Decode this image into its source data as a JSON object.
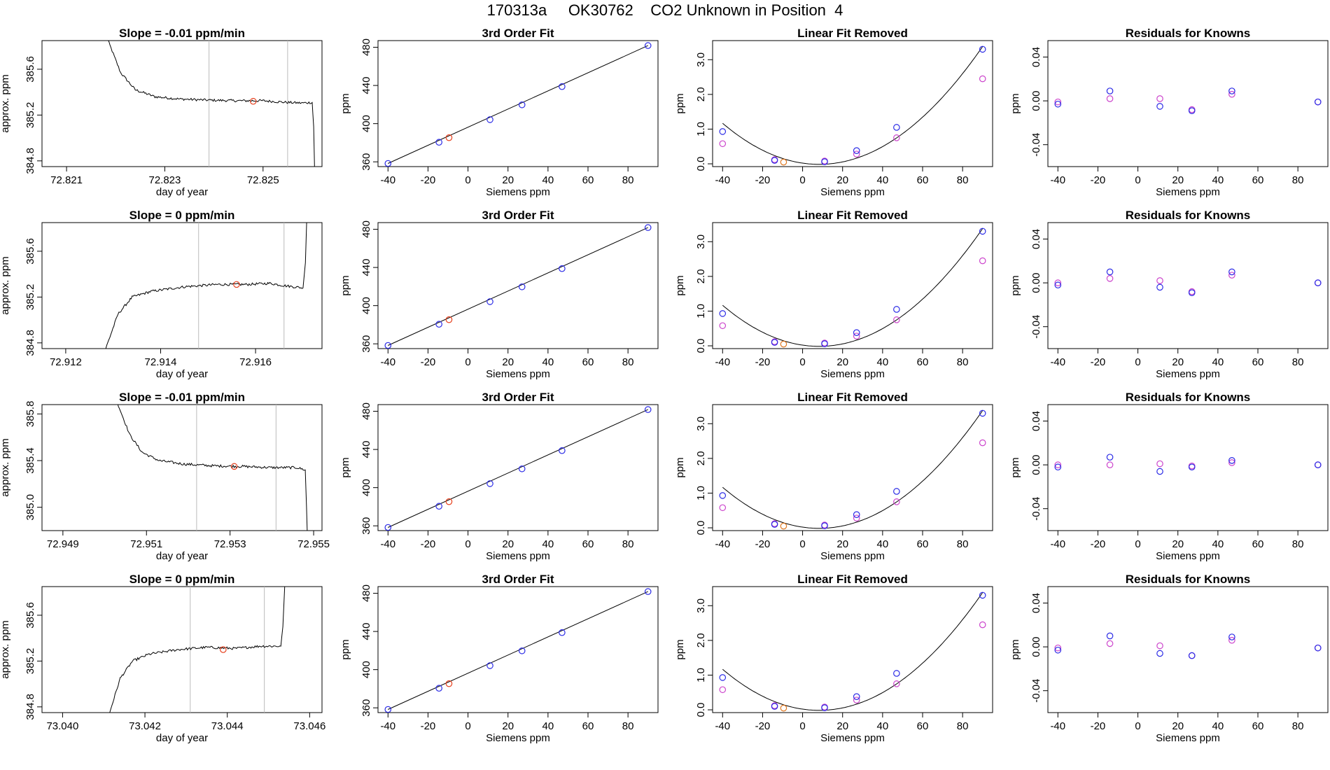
{
  "title": "170313a     OK30762    CO2 Unknown in Position  4",
  "colors": {
    "line": "#000000",
    "frame": "#000000",
    "known_point": "#2a2ae6",
    "fit_point": "#cc44cc",
    "unknown_point": "#e6401e",
    "unknown_orange": "#e07820",
    "vline": "#bbbbbb"
  },
  "fit_panel": {
    "title": "3rd Order Fit",
    "xlabel": "Siemens ppm",
    "ylabel": "ppm",
    "xlim": [
      -45,
      95
    ],
    "ylim": [
      355,
      487
    ],
    "xticks": [
      -40,
      -20,
      0,
      20,
      40,
      60,
      80
    ],
    "yticks": [
      360,
      400,
      440,
      480
    ],
    "line": [
      [
        -40,
        358.3
      ],
      [
        90,
        481.8
      ]
    ],
    "knowns": [
      [
        -40,
        358.3
      ],
      [
        -14.5,
        380.5
      ],
      [
        11,
        404.2
      ],
      [
        27,
        419.7
      ],
      [
        47,
        438.8
      ],
      [
        90,
        481.8
      ]
    ],
    "unknown": [
      -9.5,
      385.3
    ]
  },
  "linfit_panel": {
    "title": "Linear Fit Removed",
    "xlabel": "Siemens ppm",
    "ylabel": "ppm",
    "xlim": [
      -45,
      95
    ],
    "ylim": [
      -0.08,
      3.55
    ],
    "xticks": [
      -40,
      -20,
      0,
      20,
      40,
      60,
      80
    ],
    "yticks": [
      0.0,
      1.0,
      2.0,
      3.0
    ],
    "ytick_labels": [
      "0.0",
      "1.0",
      "2.0",
      "3.0"
    ],
    "curve_coef": [
      0.02,
      -0.0084,
      0.000508
    ],
    "knowns": [
      [
        -40,
        0.93
      ],
      [
        -14,
        0.1
      ],
      [
        11,
        0.06
      ],
      [
        27,
        0.38
      ],
      [
        47,
        1.05
      ],
      [
        90,
        3.3
      ]
    ],
    "fitpoints": [
      [
        -40,
        0.58
      ],
      [
        -14,
        0.12
      ],
      [
        11,
        0.08
      ],
      [
        27,
        0.28
      ],
      [
        47,
        0.75
      ],
      [
        90,
        2.45
      ]
    ],
    "unknown": [
      -9.5,
      0.05
    ]
  },
  "resid_panel": {
    "title": "Residuals for Knowns",
    "xlabel": "Siemens ppm",
    "ylabel": "ppm",
    "xlim": [
      -45,
      95
    ],
    "ylim": [
      -0.06,
      0.055
    ],
    "xticks": [
      -40,
      -20,
      0,
      20,
      40,
      60,
      80
    ],
    "yticks": [
      -0.04,
      0.0,
      0.04
    ],
    "ytick_labels": [
      "-0.04",
      "0.00",
      "0.04"
    ]
  },
  "rows": [
    {
      "ts": {
        "title": "Slope =  -0.01  ppm/min",
        "xlabel": "day of year",
        "ylabel": "approx. ppm",
        "xlim": [
          72.8205,
          72.8262
        ],
        "ylim": [
          384.75,
          385.85
        ],
        "xticks": [
          72.821,
          72.823,
          72.825
        ],
        "xtick_labels": [
          "72.821",
          "72.823",
          "72.825"
        ],
        "yticks": [
          384.8,
          385.2,
          385.6
        ],
        "ytick_labels": [
          "384.8",
          "385.2",
          "385.6"
        ],
        "vlines": [
          72.8239,
          72.8255
        ],
        "series": [
          [
            72.8218,
            385.9
          ],
          [
            72.8221,
            385.57
          ],
          [
            72.8224,
            385.42
          ],
          [
            72.8228,
            385.36
          ],
          [
            72.8233,
            385.34
          ],
          [
            72.8239,
            385.33
          ],
          [
            72.8245,
            385.325
          ],
          [
            72.825,
            385.325
          ],
          [
            72.8255,
            385.31
          ],
          [
            72.8258,
            385.305
          ],
          [
            72.826,
            385.31
          ],
          [
            72.82603,
            385.1
          ],
          [
            72.82605,
            384.7
          ]
        ],
        "marker": [
          72.8248,
          385.32
        ],
        "start": 72.8218,
        "end": 72.826,
        "start_y": 385.9,
        "end_y": 384.7
      },
      "resid_knowns": [
        [
          -40,
          -0.003
        ],
        [
          -14,
          0.009
        ],
        [
          11,
          -0.005
        ],
        [
          27,
          -0.009
        ],
        [
          47,
          0.009
        ],
        [
          90,
          -0.001
        ]
      ],
      "resid_fit": [
        [
          -40,
          -0.001
        ],
        [
          -14,
          0.002
        ],
        [
          11,
          0.002
        ],
        [
          27,
          -0.008
        ],
        [
          47,
          0.006
        ],
        [
          90,
          -0.001
        ]
      ]
    },
    {
      "ts": {
        "title": "Slope =  0  ppm/min",
        "xlabel": "day of year",
        "ylabel": "approx. ppm",
        "xlim": [
          72.9115,
          72.9174
        ],
        "ylim": [
          384.75,
          385.85
        ],
        "xticks": [
          72.912,
          72.914,
          72.916
        ],
        "xtick_labels": [
          "72.912",
          "72.914",
          "72.916"
        ],
        "yticks": [
          384.8,
          385.2,
          385.6
        ],
        "ytick_labels": [
          "384.8",
          "385.2",
          "385.6"
        ],
        "vlines": [
          72.9148,
          72.9166
        ],
        "series": [
          [
            72.9128,
            384.7
          ],
          [
            72.9131,
            385.05
          ],
          [
            72.9134,
            385.2
          ],
          [
            72.9138,
            385.25
          ],
          [
            72.9145,
            385.29
          ],
          [
            72.9152,
            385.31
          ],
          [
            72.9158,
            385.31
          ],
          [
            72.9163,
            385.32
          ],
          [
            72.9166,
            385.3
          ],
          [
            72.917,
            385.28
          ],
          [
            72.91705,
            385.5
          ],
          [
            72.91708,
            385.9
          ]
        ],
        "marker": [
          72.9156,
          385.31
        ],
        "start": 72.9128,
        "end": 72.917,
        "start_y": 384.7,
        "end_y": 385.9
      },
      "resid_knowns": [
        [
          -40,
          -0.002
        ],
        [
          -14,
          0.01
        ],
        [
          11,
          -0.004
        ],
        [
          27,
          -0.009
        ],
        [
          47,
          0.01
        ],
        [
          90,
          0.0
        ]
      ],
      "resid_fit": [
        [
          -40,
          0.0
        ],
        [
          -14,
          0.004
        ],
        [
          11,
          0.002
        ],
        [
          27,
          -0.008
        ],
        [
          47,
          0.007
        ],
        [
          90,
          0.0
        ]
      ]
    },
    {
      "ts": {
        "title": "Slope =  -0.01  ppm/min",
        "xlabel": "day of year",
        "ylabel": "approx. ppm",
        "xlim": [
          72.9485,
          72.9552
        ],
        "ylim": [
          384.8,
          385.88
        ],
        "xticks": [
          72.949,
          72.951,
          72.953,
          72.955
        ],
        "xtick_labels": [
          "72.949",
          "72.951",
          "72.953",
          "72.955"
        ],
        "yticks": [
          385.0,
          385.4,
          385.8
        ],
        "ytick_labels": [
          "385.0",
          "385.4",
          "385.8"
        ],
        "vlines": [
          72.9522,
          72.9541
        ],
        "series": [
          [
            72.9503,
            385.9
          ],
          [
            72.9506,
            385.62
          ],
          [
            72.9509,
            385.47
          ],
          [
            72.9513,
            385.4
          ],
          [
            72.9519,
            385.37
          ],
          [
            72.9526,
            385.355
          ],
          [
            72.9533,
            385.35
          ],
          [
            72.954,
            385.34
          ],
          [
            72.9546,
            385.34
          ],
          [
            72.9548,
            385.32
          ],
          [
            72.95483,
            385.0
          ],
          [
            72.95485,
            384.75
          ]
        ],
        "marker": [
          72.9531,
          385.35
        ],
        "start": 72.9503,
        "end": 72.9548,
        "start_y": 385.9,
        "end_y": 384.75
      },
      "resid_knowns": [
        [
          -40,
          -0.002
        ],
        [
          -14,
          0.007
        ],
        [
          11,
          -0.006
        ],
        [
          27,
          -0.002
        ],
        [
          47,
          0.004
        ],
        [
          90,
          0.0
        ]
      ],
      "resid_fit": [
        [
          -40,
          0.0
        ],
        [
          -14,
          0.0
        ],
        [
          11,
          0.001
        ],
        [
          27,
          -0.001
        ],
        [
          47,
          0.002
        ],
        [
          90,
          0.0
        ]
      ]
    },
    {
      "ts": {
        "title": "Slope =  0  ppm/min",
        "xlabel": "day of year",
        "ylabel": "approx. ppm",
        "xlim": [
          73.0395,
          73.0463
        ],
        "ylim": [
          384.75,
          385.85
        ],
        "xticks": [
          73.04,
          73.042,
          73.044,
          73.046
        ],
        "xtick_labels": [
          "73.040",
          "73.042",
          "73.044",
          "73.046"
        ],
        "yticks": [
          384.8,
          385.2,
          385.6
        ],
        "ytick_labels": [
          "384.8",
          "385.2",
          "385.6"
        ],
        "vlines": [
          73.0431,
          73.0449
        ],
        "series": [
          [
            73.0411,
            384.7
          ],
          [
            73.0414,
            385.05
          ],
          [
            73.0417,
            385.2
          ],
          [
            73.0421,
            385.26
          ],
          [
            73.0428,
            385.3
          ],
          [
            73.0435,
            385.32
          ],
          [
            73.0442,
            385.31
          ],
          [
            73.0448,
            385.33
          ],
          [
            73.0453,
            385.33
          ],
          [
            73.04535,
            385.5
          ],
          [
            73.0454,
            385.9
          ]
        ],
        "marker": [
          73.0439,
          385.3
        ],
        "start": 73.0411,
        "end": 73.0454,
        "start_y": 384.7,
        "end_y": 385.9
      },
      "resid_knowns": [
        [
          -40,
          -0.003
        ],
        [
          -14,
          0.01
        ],
        [
          11,
          -0.006
        ],
        [
          27,
          -0.008
        ],
        [
          47,
          0.009
        ],
        [
          90,
          -0.001
        ]
      ],
      "resid_fit": [
        [
          -40,
          -0.001
        ],
        [
          -14,
          0.003
        ],
        [
          11,
          0.001
        ],
        [
          27,
          -0.008
        ],
        [
          47,
          0.006
        ],
        [
          90,
          -0.001
        ]
      ]
    }
  ]
}
